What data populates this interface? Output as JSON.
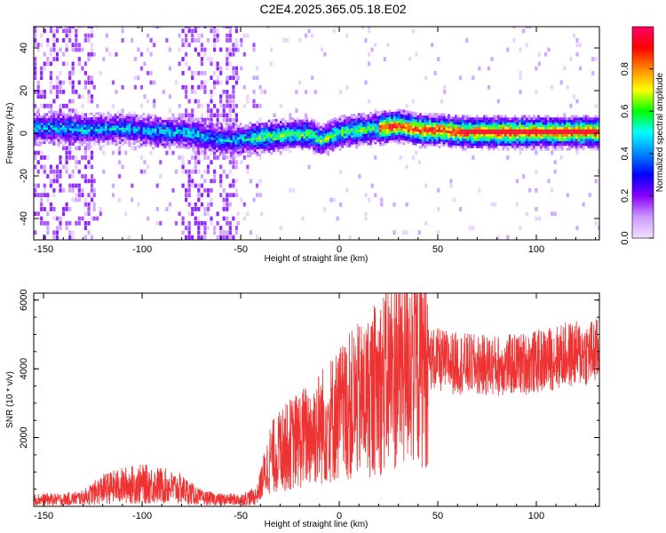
{
  "title": "C2E4.2025.365.05.18.E02",
  "chart_data": [
    {
      "type": "heatmap",
      "xlabel": "Height of straight line (km)",
      "ylabel": "Frequency (Hz)",
      "xlim": [
        -155,
        132
      ],
      "ylim": [
        -50,
        50
      ],
      "xticks": [
        -150,
        -100,
        -50,
        0,
        50,
        100
      ],
      "yticks": [
        -40,
        -20,
        0,
        20,
        40
      ],
      "colorbar": {
        "label": "Normalized spectral amplitude",
        "range": [
          0,
          1
        ],
        "ticks": [
          "0.0",
          "0.2",
          "0.4",
          "0.6",
          "0.8"
        ],
        "colors": [
          "#f0e0ff",
          "#cc99ff",
          "#8800ff",
          "#0000ff",
          "#0088ff",
          "#00ffff",
          "#00ff00",
          "#ffff00",
          "#ff8800",
          "#ff0000",
          "#ff0066"
        ]
      },
      "band_center_hz": [
        [
          -150,
          2
        ],
        [
          -140,
          2
        ],
        [
          -130,
          1
        ],
        [
          -110,
          2
        ],
        [
          -100,
          1
        ],
        [
          -90,
          0
        ],
        [
          -80,
          0
        ],
        [
          -70,
          -2
        ],
        [
          -55,
          -4
        ],
        [
          -45,
          -3
        ],
        [
          -35,
          -2
        ],
        [
          -25,
          -1
        ],
        [
          -15,
          -1
        ],
        [
          -10,
          -4
        ],
        [
          0,
          0
        ],
        [
          10,
          1
        ],
        [
          20,
          2
        ],
        [
          30,
          3
        ],
        [
          40,
          1
        ],
        [
          50,
          1
        ],
        [
          60,
          0
        ],
        [
          80,
          0
        ],
        [
          100,
          0
        ],
        [
          132,
          0
        ]
      ],
      "band_half_width_hz": 4
    },
    {
      "type": "line",
      "xlabel": "Height of straight line (km)",
      "ylabel": "SNR (10 * v/v)",
      "xlim": [
        -155,
        132
      ],
      "ylim": [
        0,
        6200
      ],
      "xticks": [
        -150,
        -100,
        -50,
        0,
        50,
        100
      ],
      "yticks": [
        2000,
        4000,
        6000
      ],
      "line_color": "#ee3333",
      "envelope": [
        [
          -155,
          200
        ],
        [
          -140,
          200
        ],
        [
          -130,
          250
        ],
        [
          -120,
          500
        ],
        [
          -110,
          600
        ],
        [
          -100,
          650
        ],
        [
          -90,
          600
        ],
        [
          -80,
          500
        ],
        [
          -70,
          250
        ],
        [
          -60,
          200
        ],
        [
          -50,
          200
        ],
        [
          -42,
          300
        ],
        [
          -35,
          1400
        ],
        [
          -25,
          1800
        ],
        [
          -15,
          2100
        ],
        [
          -5,
          2500
        ],
        [
          5,
          2900
        ],
        [
          15,
          3200
        ],
        [
          25,
          3800
        ],
        [
          35,
          4400
        ],
        [
          45,
          4300
        ],
        [
          55,
          4200
        ],
        [
          70,
          4100
        ],
        [
          85,
          4100
        ],
        [
          100,
          4200
        ],
        [
          115,
          4400
        ],
        [
          132,
          4500
        ]
      ],
      "peak_max": 6200
    }
  ]
}
